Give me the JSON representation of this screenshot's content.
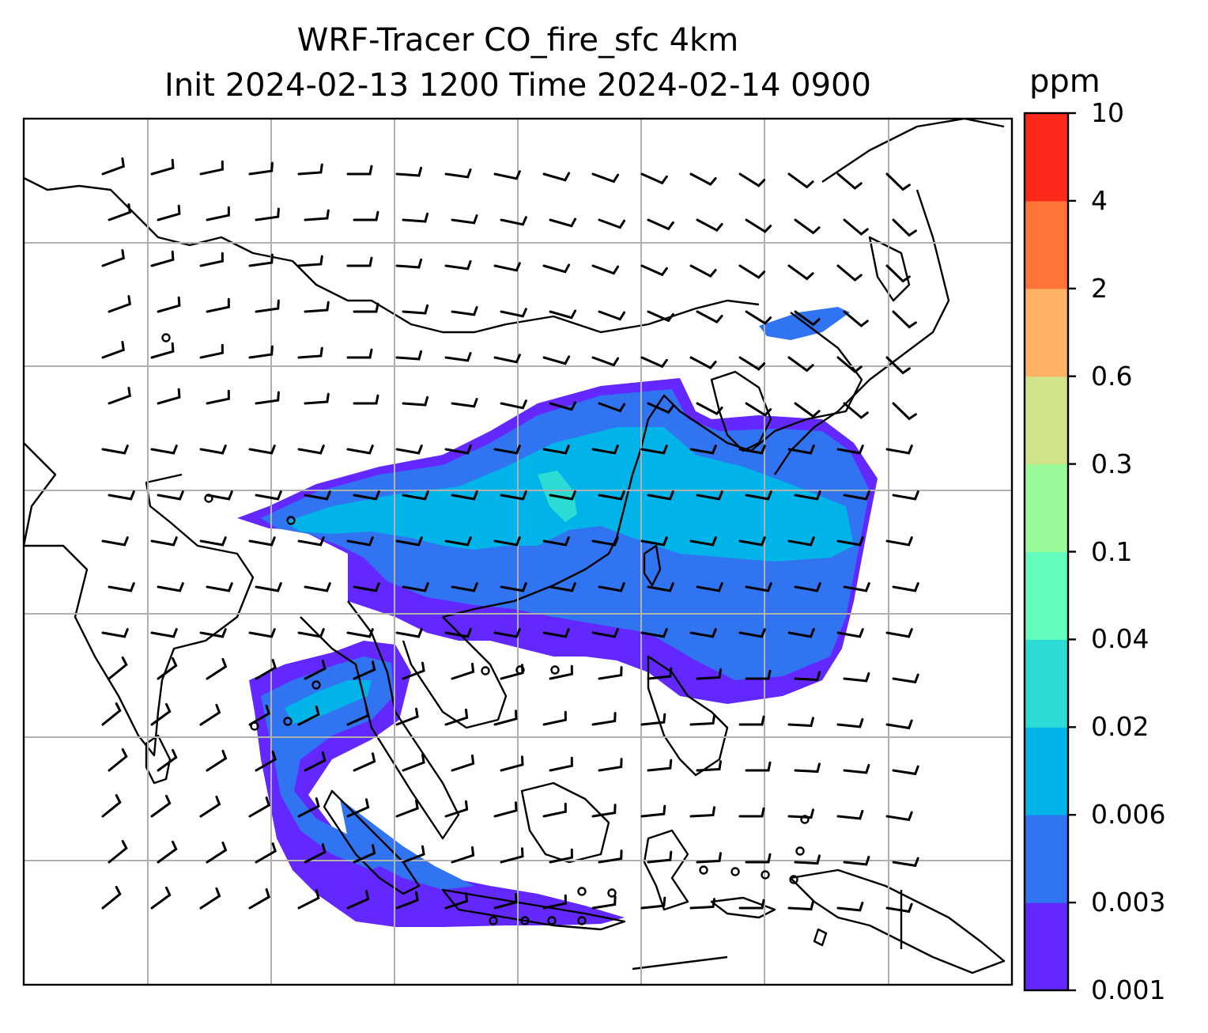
{
  "title_line1": "WRF-Tracer CO_fire_sfc 4km",
  "title_line2": "Init 2024-02-13 1200 Time 2024-02-14 0900",
  "colorbar": {
    "unit": "ppm",
    "levels": [
      "0.001",
      "0.003",
      "0.006",
      "0.02",
      "0.04",
      "0.1",
      "0.3",
      "0.6",
      "2",
      "4",
      "10"
    ],
    "colors": [
      "#6328ff",
      "#3174f1",
      "#00b3e9",
      "#2cdcd4",
      "#62fcbd",
      "#98fa98",
      "#d0e389",
      "#ffb164",
      "#ff7438",
      "#ff291b"
    ]
  },
  "map": {
    "gridlines": true,
    "plume_colors_used": [
      "#6328ff",
      "#3174f1",
      "#00b3e9",
      "#2cdcd4"
    ],
    "wind_barbs": true,
    "coastlines": true
  }
}
